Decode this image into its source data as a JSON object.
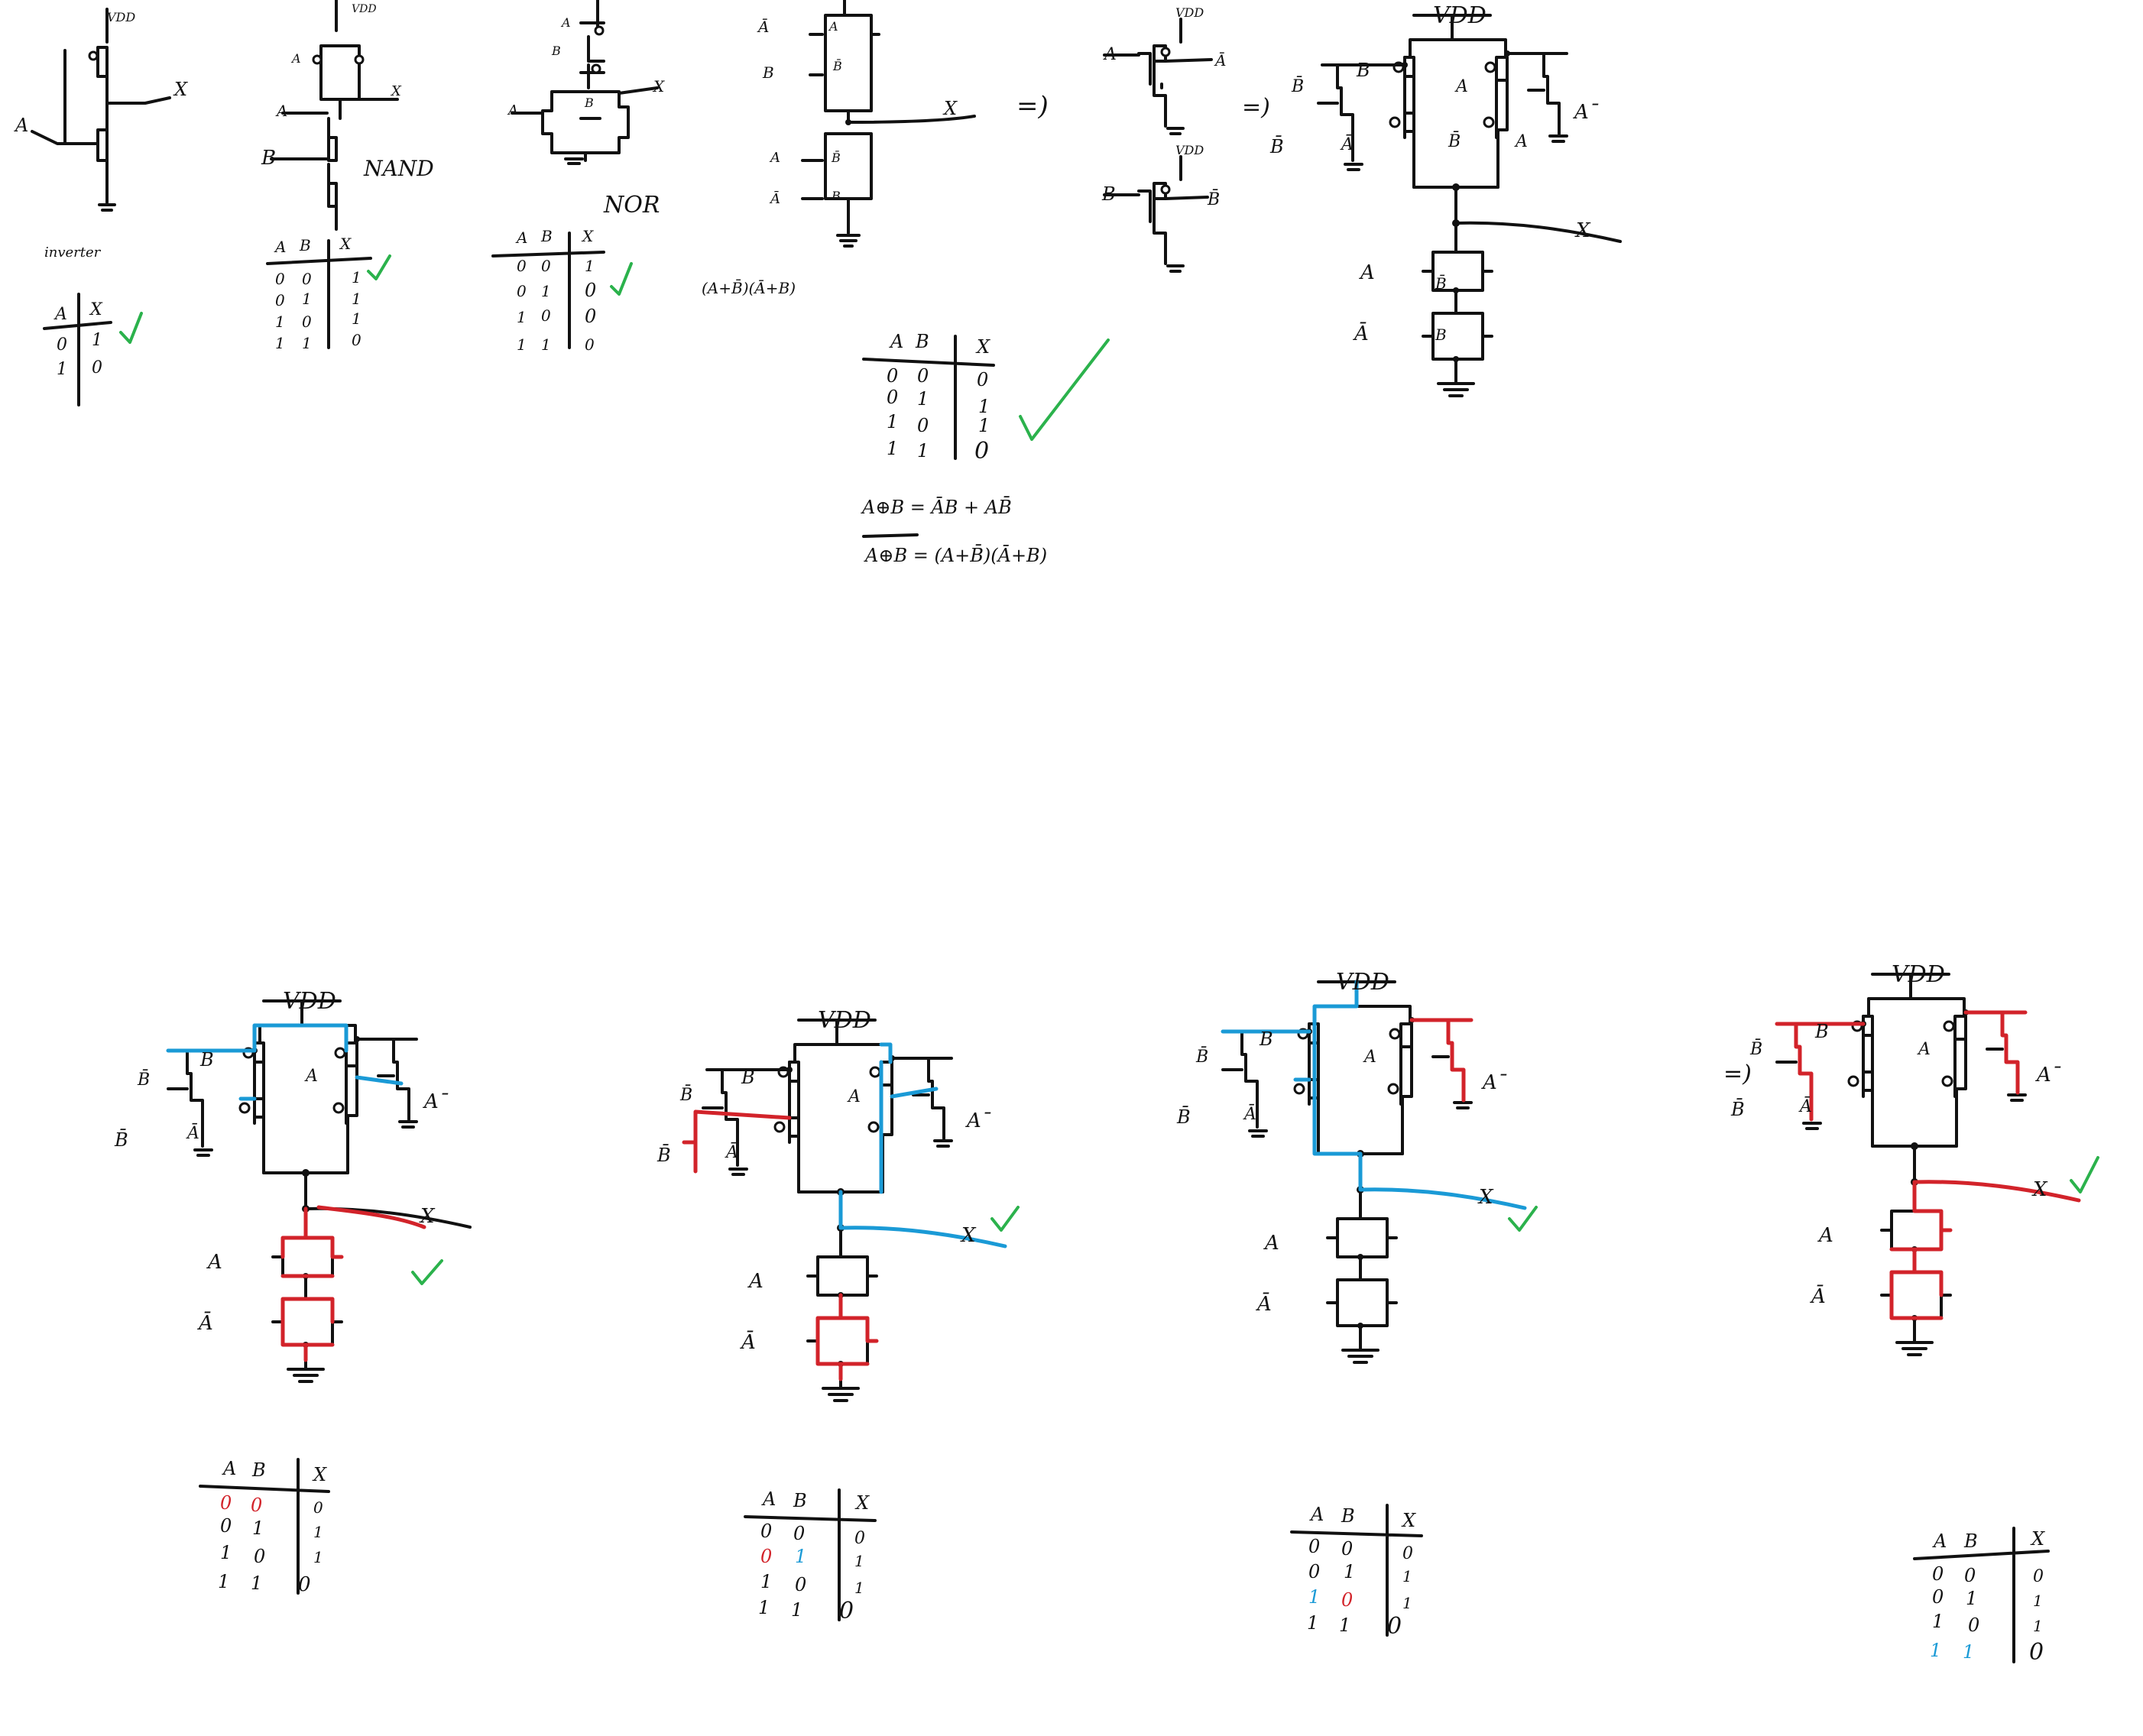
{
  "supply": "VDD",
  "supply_small": "VDD",
  "out": "X",
  "inv": "A",
  "nand": "NAND",
  "nor": "NOR",
  "inverter": "inverter",
  "arrow": "=)",
  "formulas": {
    "pos": "(A+B̄)(Ā+B)",
    "xor": "A⊕B = ĀB + AB̄",
    "xnor": "A⊕B = (A+B̄)(Ā+B)"
  },
  "labels": {
    "A": "A",
    "B": "B",
    "Abar": "Ā",
    "Bbar": "B̄",
    "Aprime": "A¯"
  },
  "truth_inverter": {
    "head": [
      "A",
      "X"
    ],
    "rows": [
      [
        "0",
        "1"
      ],
      [
        "1",
        "0"
      ]
    ]
  },
  "truth_nand": {
    "head": [
      "A",
      "B",
      "X"
    ],
    "rows": [
      [
        "0",
        "0",
        "1"
      ],
      [
        "0",
        "1",
        "1"
      ],
      [
        "1",
        "0",
        "1"
      ],
      [
        "1",
        "1",
        "0"
      ]
    ]
  },
  "truth_nor": {
    "head": [
      "A",
      "B",
      "X"
    ],
    "rows": [
      [
        "0",
        "0",
        "1"
      ],
      [
        "0",
        "1",
        "0"
      ],
      [
        "1",
        "0",
        "0"
      ],
      [
        "1",
        "1",
        "0"
      ]
    ]
  },
  "truth_xnor": {
    "head": [
      "A",
      "B",
      "X"
    ],
    "rows": [
      [
        "0",
        "0",
        "0"
      ],
      [
        "0",
        "1",
        "1"
      ],
      [
        "1",
        "0",
        "1"
      ],
      [
        "1",
        "1",
        "0"
      ]
    ]
  },
  "colors": {
    "ink": "#111111",
    "red": "#d2232a",
    "blue": "#1a9ad6",
    "check": "#2bb24c"
  }
}
